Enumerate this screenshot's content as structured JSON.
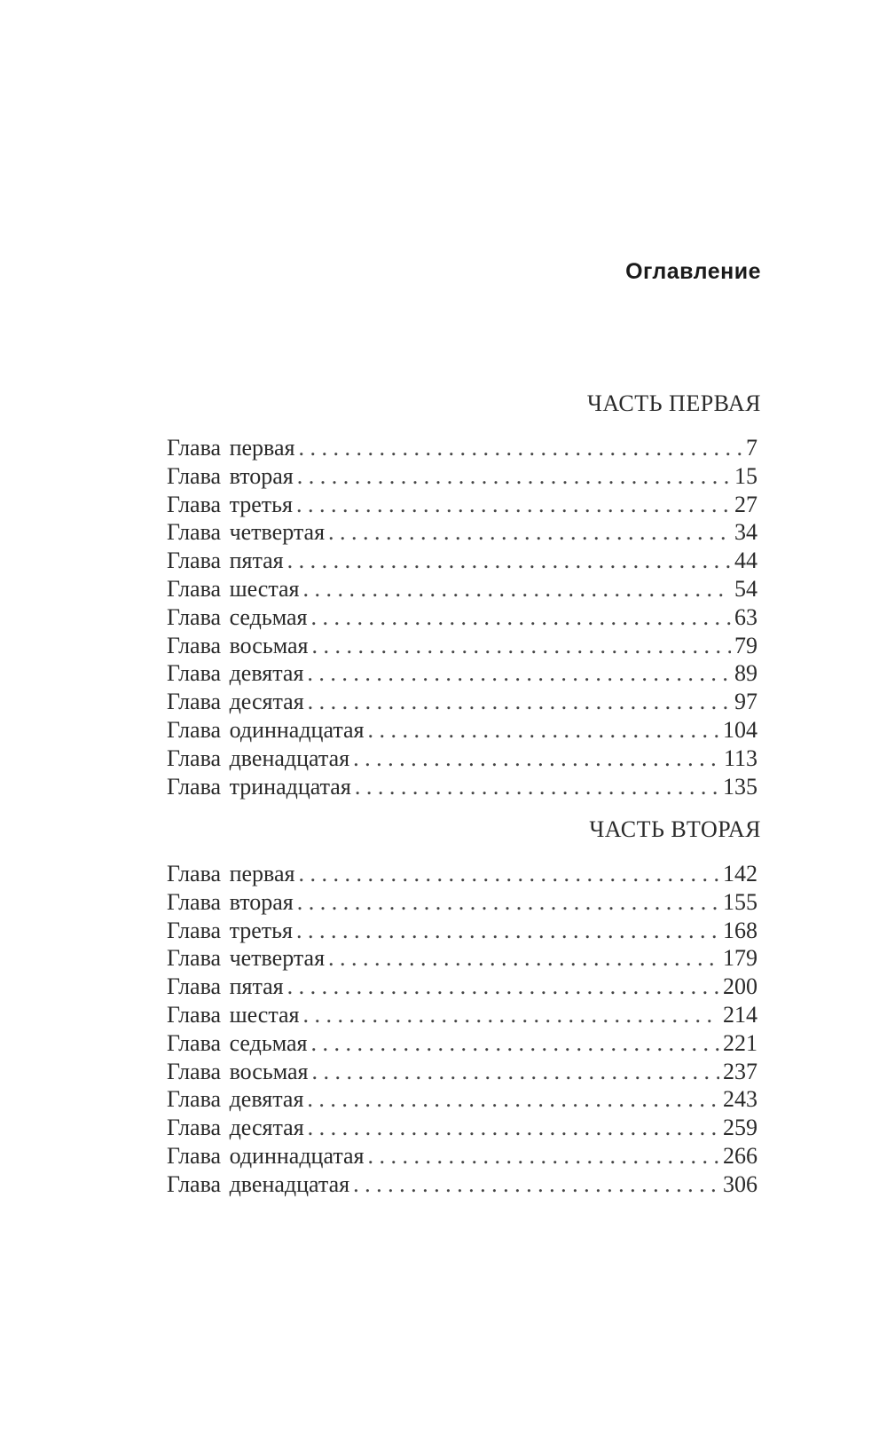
{
  "title": "Оглавление",
  "parts": [
    {
      "heading": "ЧАСТЬ ПЕРВАЯ",
      "chapters": [
        {
          "label": "Глава первая",
          "page": "7"
        },
        {
          "label": "Глава вторая",
          "page": "15"
        },
        {
          "label": "Глава третья",
          "page": "27"
        },
        {
          "label": "Глава четвертая",
          "page": "34"
        },
        {
          "label": "Глава пятая",
          "page": "44"
        },
        {
          "label": "Глава шестая",
          "page": "54"
        },
        {
          "label": "Глава седьмая",
          "page": "63"
        },
        {
          "label": "Глава восьмая",
          "page": "79"
        },
        {
          "label": "Глава девятая",
          "page": "89"
        },
        {
          "label": "Глава десятая",
          "page": "97"
        },
        {
          "label": "Глава одиннадцатая",
          "page": "104"
        },
        {
          "label": "Глава двенадцатая",
          "page": "113"
        },
        {
          "label": "Глава тринадцатая",
          "page": "135"
        }
      ]
    },
    {
      "heading": "ЧАСТЬ ВТОРАЯ",
      "chapters": [
        {
          "label": "Глава первая",
          "page": "142"
        },
        {
          "label": "Глава вторая",
          "page": "155"
        },
        {
          "label": "Глава третья",
          "page": "168"
        },
        {
          "label": "Глава четвертая",
          "page": "179"
        },
        {
          "label": "Глава пятая",
          "page": "200"
        },
        {
          "label": "Глава шестая",
          "page": "214"
        },
        {
          "label": "Глава седьмая",
          "page": "221"
        },
        {
          "label": "Глава восьмая",
          "page": "237"
        },
        {
          "label": "Глава девятая",
          "page": "243"
        },
        {
          "label": "Глава десятая",
          "page": "259"
        },
        {
          "label": "Глава одиннадцатая",
          "page": "266"
        },
        {
          "label": "Глава двенадцатая",
          "page": "306"
        }
      ]
    }
  ]
}
